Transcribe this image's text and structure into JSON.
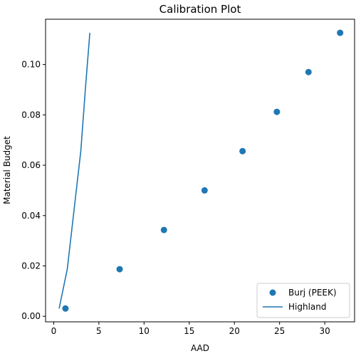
{
  "chart_data": {
    "type": "scatter",
    "title": "Calibration Plot",
    "xlabel": "AAD",
    "ylabel": "Material Budget",
    "xlim": [
      -0.9,
      33.3
    ],
    "ylim": [
      -0.0022,
      0.118
    ],
    "xticks": [
      0,
      5,
      10,
      15,
      20,
      25,
      30
    ],
    "yticks": [
      0.0,
      0.02,
      0.04,
      0.06,
      0.08,
      0.1
    ],
    "xtick_labels": [
      "0",
      "5",
      "10",
      "15",
      "20",
      "25",
      "30"
    ],
    "ytick_labels": [
      "0.00",
      "0.02",
      "0.04",
      "0.06",
      "0.08",
      "0.10"
    ],
    "grid": false,
    "legend_position": "lower-right",
    "series": [
      {
        "name": "Burj (PEEK)",
        "kind": "scatter",
        "color": "#1f77b4",
        "x": [
          1.3,
          7.3,
          12.2,
          16.7,
          20.9,
          24.7,
          28.2,
          31.7
        ],
        "y": [
          0.0031,
          0.0187,
          0.0343,
          0.05,
          0.0656,
          0.0812,
          0.097,
          0.1126
        ]
      },
      {
        "name": "Highland",
        "kind": "line",
        "color": "#1f77b4",
        "x": [
          0.6,
          1.0,
          1.5,
          2.0,
          2.5,
          3.0,
          3.5,
          4.0
        ],
        "y": [
          0.0031,
          0.01,
          0.0187,
          0.0343,
          0.05,
          0.0656,
          0.09,
          0.1126
        ]
      }
    ]
  }
}
